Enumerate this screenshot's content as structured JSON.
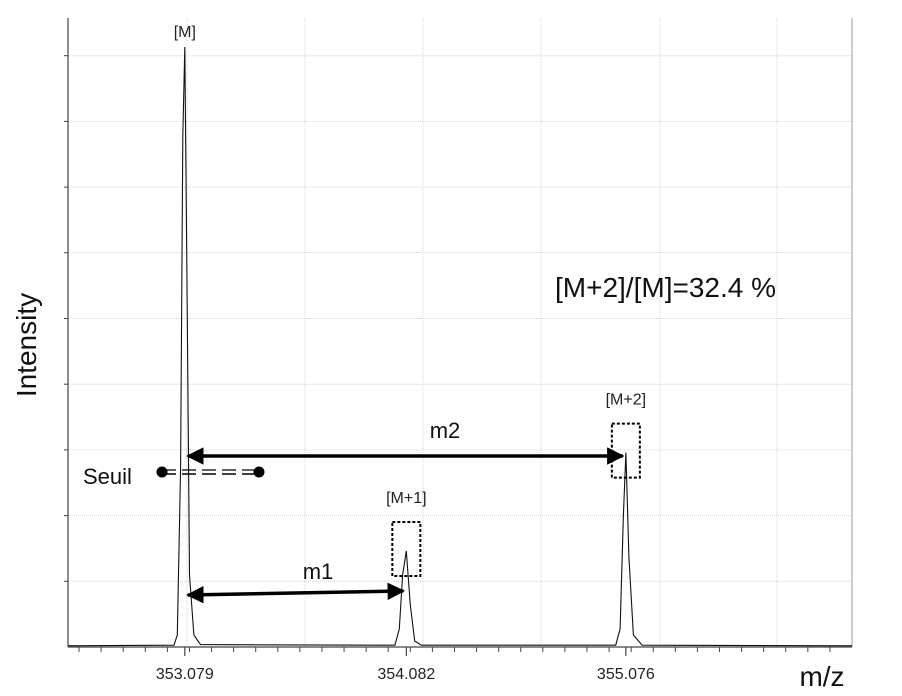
{
  "chart_data": {
    "type": "line",
    "xlabel": "m/z",
    "ylabel": "Intensity",
    "xlim": [
      352.55,
      356.1
    ],
    "ylim": [
      0,
      100
    ],
    "grid": true,
    "x_ticks": [
      353.079,
      354.082,
      355.076
    ],
    "x_tick_labels": [
      "353.079",
      "354.082",
      "355.076"
    ],
    "series": [
      {
        "values": [
          {
            "x": 352.55,
            "y": 0.2
          },
          {
            "x": 353.03,
            "y": 0.3
          },
          {
            "x": 353.045,
            "y": 2
          },
          {
            "x": 353.06,
            "y": 30
          },
          {
            "x": 353.07,
            "y": 85
          },
          {
            "x": 353.079,
            "y": 100
          },
          {
            "x": 353.09,
            "y": 55
          },
          {
            "x": 353.1,
            "y": 12
          },
          {
            "x": 353.12,
            "y": 2
          },
          {
            "x": 353.15,
            "y": 0.4
          },
          {
            "x": 354.03,
            "y": 0.3
          },
          {
            "x": 354.05,
            "y": 3
          },
          {
            "x": 354.065,
            "y": 12
          },
          {
            "x": 354.082,
            "y": 16
          },
          {
            "x": 354.1,
            "y": 7
          },
          {
            "x": 354.12,
            "y": 1
          },
          {
            "x": 354.15,
            "y": 0.3
          },
          {
            "x": 355.03,
            "y": 0.3
          },
          {
            "x": 355.05,
            "y": 3
          },
          {
            "x": 355.065,
            "y": 22
          },
          {
            "x": 355.076,
            "y": 32.4
          },
          {
            "x": 355.09,
            "y": 15
          },
          {
            "x": 355.11,
            "y": 2
          },
          {
            "x": 355.15,
            "y": 0.3
          },
          {
            "x": 356.1,
            "y": 0.2
          }
        ]
      }
    ],
    "peaks": [
      {
        "label": "[M]",
        "x": 353.079,
        "y": 100
      },
      {
        "label": "[M+1]",
        "x": 354.082,
        "y": 16
      },
      {
        "label": "[M+2]",
        "x": 355.076,
        "y": 32.4
      }
    ],
    "threshold": {
      "label": "Seuil",
      "y": 27.5
    },
    "annotations": {
      "ratio_text": "[M+2]/[M]=32.4 %",
      "m1_label": "m1",
      "m2_label": "m2"
    }
  }
}
